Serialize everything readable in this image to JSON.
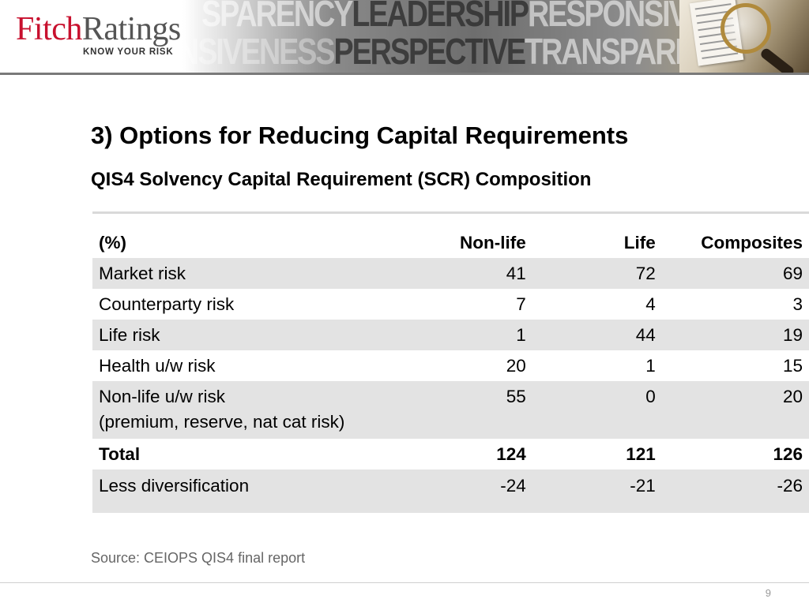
{
  "header": {
    "logo_primary": "Fitch",
    "logo_secondary": "Ratings",
    "logo_tagline": "KNOW YOUR RISK",
    "banner_row1": [
      "SPARENCY",
      "LEADERSHIP",
      "RESPONSIVENESS"
    ],
    "banner_row2": [
      "NSIVENESS",
      "PERSPECTIVE",
      "TRANSPARENCY"
    ],
    "colors": {
      "logo_red": "#c8102e",
      "logo_grey": "#555555"
    }
  },
  "title": "3) Options for Reducing Capital Requirements",
  "subtitle": "QIS4 Solvency Capital Requirement (SCR) Composition",
  "table": {
    "headers": [
      "(%)",
      "Non-life",
      "Life",
      "Composites"
    ],
    "rows": [
      {
        "label": "Market risk",
        "values": [
          "41",
          "72",
          "69"
        ]
      },
      {
        "label": "Counterparty risk",
        "values": [
          "7",
          "4",
          "3"
        ]
      },
      {
        "label": "Life risk",
        "values": [
          "1",
          "44",
          "19"
        ]
      },
      {
        "label": "Health u/w risk",
        "values": [
          "20",
          "1",
          "15"
        ]
      },
      {
        "label": "Non-life u/w risk",
        "label_line2": "(premium, reserve, nat cat risk)",
        "values": [
          "55",
          "0",
          "20"
        ]
      },
      {
        "label": "Total",
        "values": [
          "124",
          "121",
          "126"
        ]
      },
      {
        "label": "Less diversification",
        "values": [
          "-24",
          "-21",
          "-26"
        ]
      }
    ]
  },
  "source": "Source: CEIOPS QIS4 final report",
  "page_number": "9"
}
